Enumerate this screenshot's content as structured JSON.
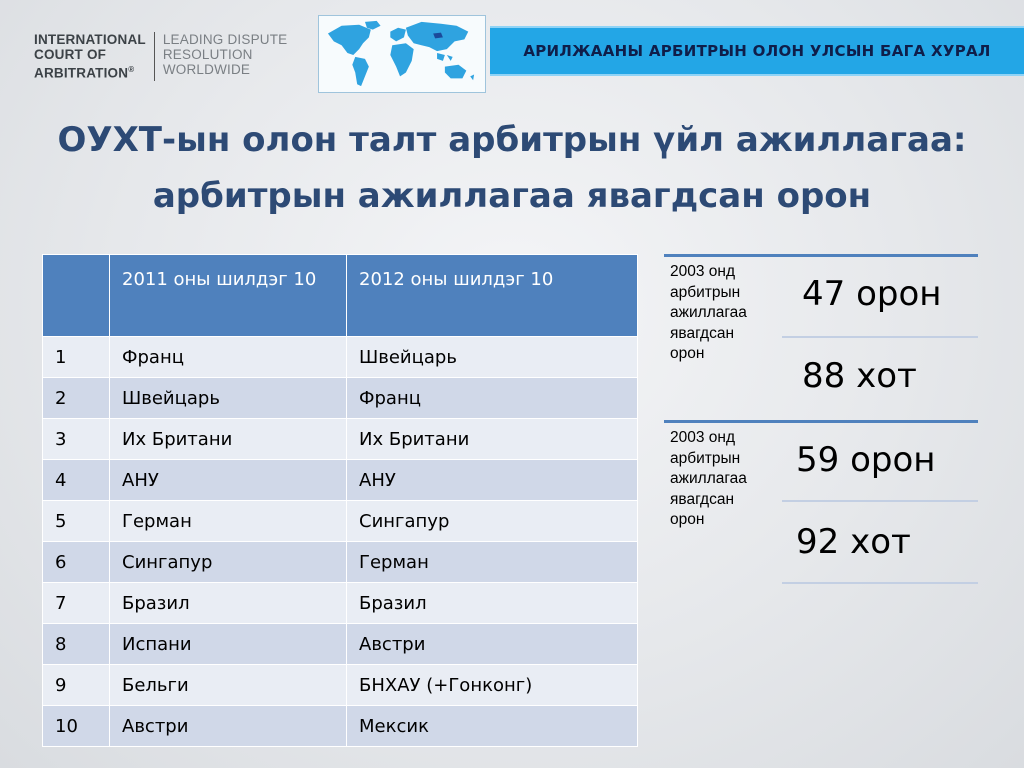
{
  "logo": {
    "left_lines": [
      "INTERNATIONAL",
      "COURT OF",
      "ARBITRATION"
    ],
    "registered_mark": "®",
    "right_lines": [
      "LEADING DISPUTE",
      "RESOLUTION",
      "WORLDWIDE"
    ]
  },
  "banner": {
    "text": "АРИЛЖААНЫ АРБИТРЫН ОЛОН УЛСЫН БАГА ХУРАЛ"
  },
  "title": {
    "line1": "ОУХТ-ын олон талт арбитрын үйл ажиллагаа:",
    "line2": "арбитрын ажиллагаа явагдсан орон"
  },
  "table": {
    "headers": [
      "",
      "2011 оны шилдэг 10",
      "2012 оны шилдэг 10"
    ],
    "rows": [
      [
        "1",
        "Франц",
        "Швейцарь"
      ],
      [
        "2",
        "Швейцарь",
        "Франц"
      ],
      [
        "3",
        "Их Британи",
        "Их Британи"
      ],
      [
        "4",
        "АНУ",
        "АНУ"
      ],
      [
        "5",
        "Герман",
        "Сингапур"
      ],
      [
        "6",
        "Сингапур",
        "Герман"
      ],
      [
        "7",
        "Бразил",
        "Бразил"
      ],
      [
        "8",
        "Испани",
        "Австри"
      ],
      [
        "9",
        "Бельги",
        "БНХАУ (+Гонконг)"
      ],
      [
        "10",
        "Австри",
        "Мексик"
      ]
    ]
  },
  "side": [
    {
      "label_lines": [
        "2003 онд",
        "арбитрын",
        "ажиллагаа",
        "явагдсан",
        "орон"
      ],
      "countries": "47 орон",
      "cities": "88 хот"
    },
    {
      "label_lines": [
        "2003 онд",
        "арбитрын",
        "ажиллагаа",
        "явагдсан",
        "орон"
      ],
      "countries": "59 орон",
      "cities": "92 хот"
    }
  ],
  "colors": {
    "banner": "#23a6e6",
    "title": "#2d4a75",
    "table_header": "#4f81bd",
    "row_odd": "#d0d8e8",
    "row_even": "#e9edf4"
  },
  "icons": {
    "map": "world-map-icon"
  }
}
